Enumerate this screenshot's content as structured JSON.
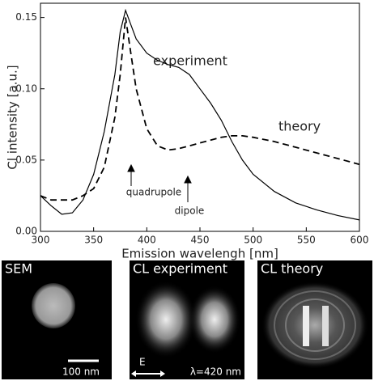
{
  "chart_data": {
    "type": "line",
    "xlabel": "Emission wavelengh [nm]",
    "ylabel": "Cl intensity [a.u.]",
    "x": [
      300,
      310,
      320,
      330,
      340,
      350,
      360,
      370,
      375,
      380,
      385,
      390,
      400,
      410,
      420,
      430,
      440,
      450,
      460,
      470,
      480,
      490,
      500,
      520,
      540,
      560,
      580,
      600
    ],
    "series": [
      {
        "name": "experiment",
        "color": "#000000",
        "linestyle": "solid",
        "values": [
          0.025,
          0.018,
          0.012,
          0.013,
          0.022,
          0.04,
          0.07,
          0.11,
          0.14,
          0.155,
          0.145,
          0.135,
          0.125,
          0.12,
          0.117,
          0.115,
          0.11,
          0.1,
          0.09,
          0.078,
          0.063,
          0.05,
          0.04,
          0.028,
          0.02,
          0.015,
          0.011,
          0.008
        ]
      },
      {
        "name": "theory",
        "color": "#000000",
        "linestyle": "dashed",
        "values": [
          0.025,
          0.022,
          0.022,
          0.022,
          0.025,
          0.03,
          0.045,
          0.08,
          0.11,
          0.15,
          0.125,
          0.1,
          0.072,
          0.06,
          0.057,
          0.058,
          0.06,
          0.062,
          0.064,
          0.066,
          0.067,
          0.067,
          0.066,
          0.063,
          0.059,
          0.055,
          0.051,
          0.047
        ]
      }
    ],
    "annotations": [
      "quadrupole",
      "dipole"
    ],
    "xlim": [
      300,
      600
    ],
    "xticks": [
      300,
      350,
      400,
      450,
      500,
      550,
      600
    ],
    "ylim": [
      0,
      0.16
    ],
    "yticks": [
      {
        "value": 0,
        "label": "0.00"
      },
      0.05,
      {
        "value": 0.1,
        "label": "0.10"
      },
      0.15
    ]
  },
  "panels": [
    {
      "title": "SEM",
      "caption": "100 nm"
    },
    {
      "title": "CL experiment",
      "caption": "λ=420 nm",
      "arrow_label": "E"
    },
    {
      "title": "CL theory"
    }
  ]
}
